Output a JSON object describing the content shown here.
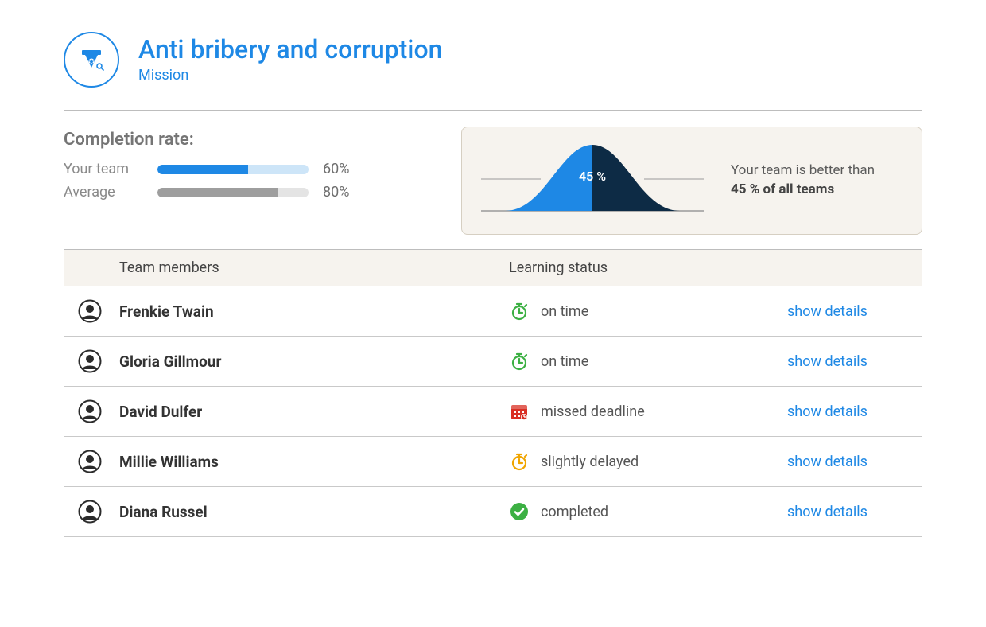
{
  "header": {
    "title": "Anti bribery and corruption",
    "subtitle": "Mission",
    "accent_color": "#1e88e5"
  },
  "completion": {
    "title": "Completion rate:",
    "rows": [
      {
        "label": "Your team",
        "value_text": "60%",
        "percent": 60,
        "track_color": "#cde5f8",
        "fill_color": "#1e88e5"
      },
      {
        "label": "Average",
        "value_text": "80%",
        "percent": 80,
        "track_color": "#e4e4e4",
        "fill_color": "#9e9e9e"
      }
    ]
  },
  "bell": {
    "percent_label": "45 %",
    "text_prefix": "Your team is better than",
    "text_bold": "45 % of all teams",
    "card_bg": "#f6f3ee",
    "card_border": "#d6cfc2",
    "curve_left_color": "#1e88e5",
    "curve_right_color": "#0d2b45",
    "axis_color": "#9a9a9a"
  },
  "table": {
    "header_bg": "#f6f3ee",
    "columns": {
      "members": "Team members",
      "status": "Learning status"
    },
    "action_label": "show  details",
    "status_colors": {
      "on_time": "#3cb043",
      "missed": "#d93025",
      "delayed": "#f0a500",
      "completed": "#3cb043"
    },
    "rows": [
      {
        "name": "Frenkie Twain",
        "status_key": "on_time",
        "status_text": "on time"
      },
      {
        "name": "Gloria Gillmour",
        "status_key": "on_time",
        "status_text": "on time"
      },
      {
        "name": "David Dulfer",
        "status_key": "missed",
        "status_text": "missed deadline"
      },
      {
        "name": "Millie Williams",
        "status_key": "delayed",
        "status_text": "slightly delayed"
      },
      {
        "name": "Diana Russel",
        "status_key": "completed",
        "status_text": "completed"
      }
    ]
  }
}
